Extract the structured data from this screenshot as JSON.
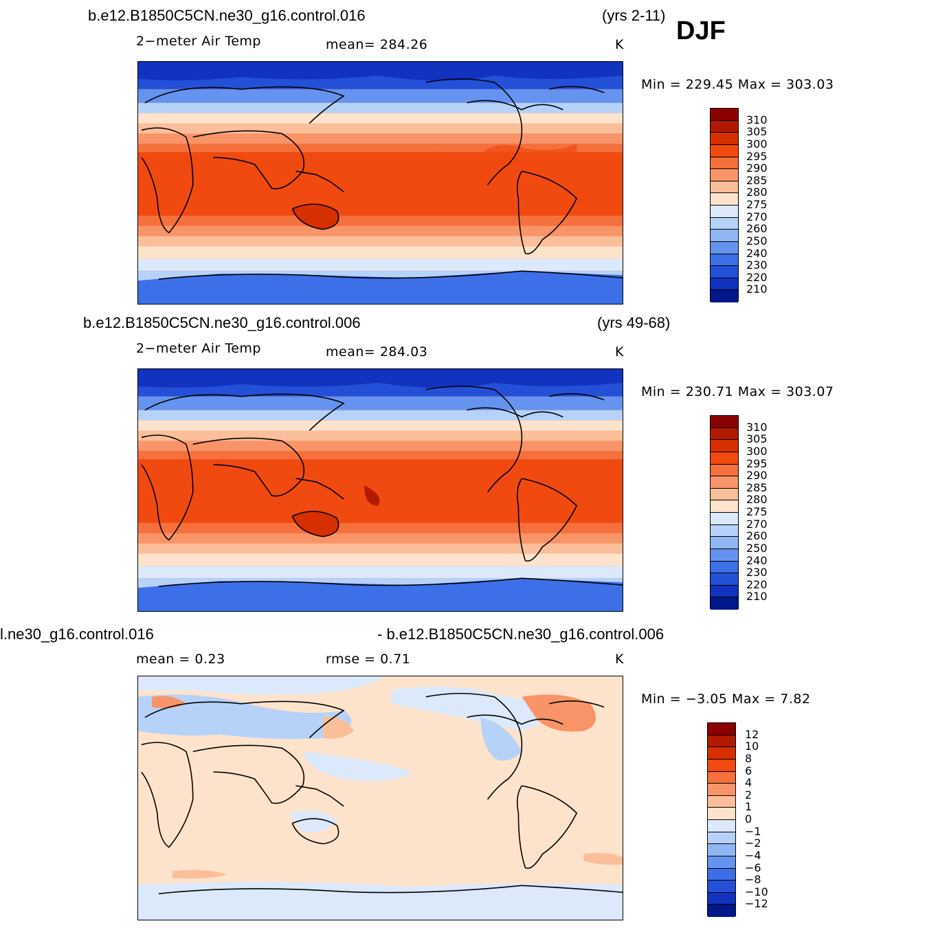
{
  "season": "DJF",
  "panels": [
    {
      "case": "b.e12.B1850C5CN.ne30_g16.control.016",
      "years": "(yrs 2-11)",
      "variable": "2−meter  Air  Temp",
      "stat": "mean=  284.26",
      "units": "K",
      "minmax": "Min  =  229.45  Max  =  303.03"
    },
    {
      "case": "b.e12.B1850C5CN.ne30_g16.control.006",
      "years": "(yrs 49-68)",
      "variable": "2−meter  Air  Temp",
      "stat": "mean=  284.03",
      "units": "K",
      "minmax": "Min  =  230.71  Max  =  303.07"
    },
    {
      "case": "l.ne30_g16.control.016",
      "case2": "- b.e12.B1850C5CN.ne30_g16.control.006",
      "stat_mean": "mean  =     0.23",
      "stat_rmse": "rmse  =     0.71",
      "units": "K",
      "minmax": "Min  =    −3.05  Max  =      7.82"
    }
  ],
  "colorbar_abs": {
    "labels": [
      "310",
      "305",
      "300",
      "295",
      "290",
      "285",
      "280",
      "275",
      "270",
      "260",
      "250",
      "240",
      "230",
      "220",
      "210"
    ],
    "colors": [
      "#8b0000",
      "#b21a00",
      "#d63000",
      "#f04a10",
      "#f5703c",
      "#f89468",
      "#fbbe9a",
      "#fee3cc",
      "#dbe9fb",
      "#b7d2f8",
      "#90b6f4",
      "#6593ef",
      "#3d6fe8",
      "#2450d8",
      "#1232c0",
      "#00188a"
    ]
  },
  "colorbar_diff": {
    "labels": [
      "12",
      "10",
      "8",
      "6",
      "4",
      "2",
      "1",
      "0",
      "−1",
      "−2",
      "−4",
      "−6",
      "−8",
      "−10",
      "−12"
    ],
    "colors": [
      "#8b0000",
      "#b21a00",
      "#d63000",
      "#f04a10",
      "#f5703c",
      "#f89468",
      "#fbbe9a",
      "#fee3cc",
      "#dbe9fb",
      "#b7d2f8",
      "#90b6f4",
      "#6593ef",
      "#3d6fe8",
      "#2450d8",
      "#1232c0",
      "#00188a"
    ]
  }
}
